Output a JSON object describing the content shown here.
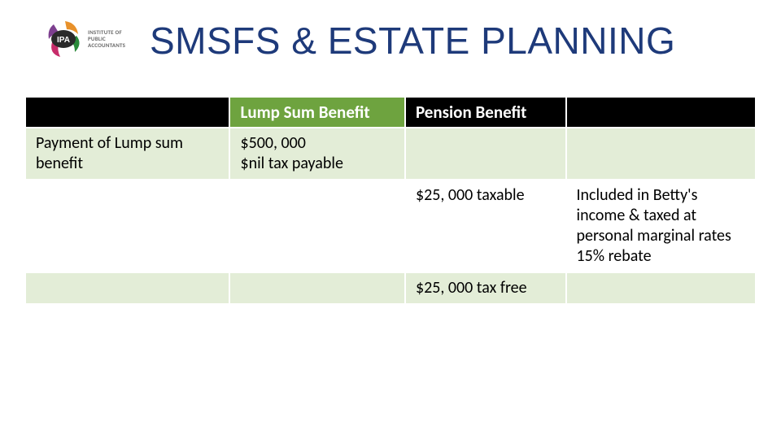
{
  "header": {
    "title": "SMSFS & ESTATE PLANNING",
    "logo_text_line1": "INSTITUTE OF",
    "logo_text_line2": "PUBLIC",
    "logo_text_line3": "ACCOUNTANTS",
    "logo_badge": "IPA"
  },
  "table": {
    "headers": {
      "col0": "",
      "col1": "Lump Sum Benefit",
      "col2": "Pension Benefit",
      "col3": ""
    },
    "rows": [
      {
        "class": "light",
        "cells": [
          "Payment of Lump sum benefit",
          "$500, 000\n$nil tax payable",
          "",
          ""
        ]
      },
      {
        "class": "white",
        "cells": [
          "",
          "",
          "$25, 000 taxable",
          "Included in Betty's income & taxed at personal marginal rates\n15% rebate"
        ]
      },
      {
        "class": "light",
        "cells": [
          "",
          "",
          "$25, 000 tax free",
          ""
        ]
      }
    ]
  },
  "colors": {
    "title": "#1e3a7a",
    "header_green": "#6ea33f",
    "header_black": "#000000",
    "row_light": "#e3edd7",
    "row_white": "#ffffff",
    "text": "#000000"
  }
}
